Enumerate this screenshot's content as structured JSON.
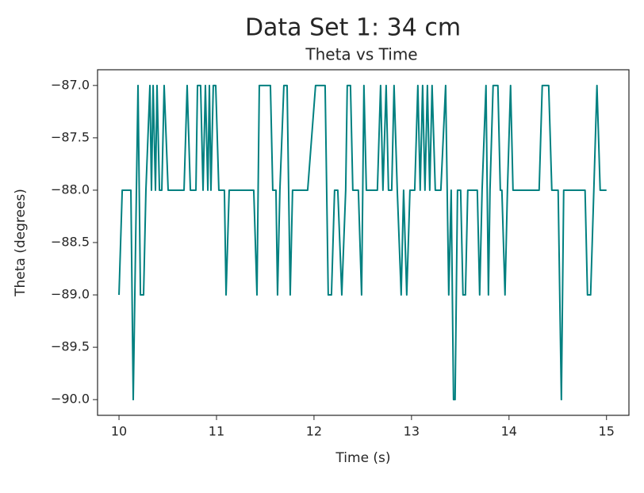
{
  "chart_data": {
    "type": "line",
    "title": "Data Set 1: 34 cm",
    "subtitle": "Theta vs Time",
    "x_label": "Time (s)",
    "y_label": "Theta (degrees)",
    "xlim": [
      9.78,
      15.23
    ],
    "ylim": [
      -90.15,
      -86.85
    ],
    "xticks": [
      10,
      11,
      12,
      13,
      14,
      15
    ],
    "yticks": [
      {
        "value": -87.0,
        "label": "−87.0"
      },
      {
        "value": -87.5,
        "label": "−87.5"
      },
      {
        "value": -88.0,
        "label": "−88.0"
      },
      {
        "value": -88.5,
        "label": "−88.5"
      },
      {
        "value": -89.0,
        "label": "−89.0"
      },
      {
        "value": -89.5,
        "label": "−89.5"
      },
      {
        "value": -90.0,
        "label": "−90.0"
      }
    ],
    "grid": false,
    "series": [
      {
        "color": "#008080",
        "x": [
          10.0,
          10.033,
          10.122,
          10.146,
          10.195,
          10.22,
          10.252,
          10.276,
          10.317,
          10.333,
          10.35,
          10.374,
          10.39,
          10.415,
          10.439,
          10.463,
          10.504,
          10.667,
          10.699,
          10.732,
          10.789,
          10.805,
          10.837,
          10.862,
          10.886,
          10.911,
          10.927,
          10.943,
          10.967,
          10.992,
          11.024,
          11.081,
          11.098,
          11.13,
          11.382,
          11.415,
          11.439,
          11.553,
          11.577,
          11.61,
          11.626,
          11.65,
          11.691,
          11.724,
          11.756,
          11.78,
          11.935,
          12.016,
          12.114,
          12.146,
          12.179,
          12.211,
          12.244,
          12.285,
          12.325,
          12.341,
          12.374,
          12.398,
          12.455,
          12.488,
          12.512,
          12.537,
          12.65,
          12.683,
          12.707,
          12.74,
          12.764,
          12.797,
          12.821,
          12.854,
          12.894,
          12.919,
          12.951,
          12.984,
          13.033,
          13.065,
          13.089,
          13.114,
          13.138,
          13.163,
          13.187,
          13.211,
          13.244,
          13.301,
          13.35,
          13.382,
          13.407,
          13.431,
          13.447,
          13.472,
          13.504,
          13.528,
          13.553,
          13.577,
          13.675,
          13.699,
          13.724,
          13.764,
          13.789,
          13.805,
          13.837,
          13.886,
          13.911,
          13.927,
          13.959,
          13.984,
          14.016,
          14.041,
          14.309,
          14.341,
          14.374,
          14.407,
          14.439,
          14.472,
          14.504,
          14.537,
          14.561,
          14.78,
          14.805,
          14.837,
          14.87,
          14.902,
          14.935,
          14.967,
          15.0
        ],
        "values": [
          -89,
          -88,
          -88,
          -90,
          -87,
          -89,
          -89,
          -88,
          -87,
          -88,
          -87,
          -88,
          -87,
          -88,
          -88,
          -87,
          -88,
          -88,
          -87,
          -88,
          -88,
          -87,
          -87,
          -88,
          -87,
          -88,
          -87,
          -88,
          -87,
          -87,
          -88,
          -88,
          -89,
          -88,
          -88,
          -89,
          -87,
          -87,
          -88,
          -88,
          -89,
          -88,
          -87,
          -87,
          -89,
          -88,
          -88,
          -87,
          -87,
          -89,
          -89,
          -88,
          -88,
          -89,
          -88,
          -87,
          -87,
          -88,
          -88,
          -89,
          -87,
          -88,
          -88,
          -87,
          -88,
          -87,
          -88,
          -88,
          -87,
          -88,
          -89,
          -88,
          -89,
          -88,
          -88,
          -87,
          -88,
          -87,
          -88,
          -87,
          -88,
          -87,
          -88,
          -88,
          -87,
          -89,
          -88,
          -90,
          -90,
          -88,
          -88,
          -89,
          -89,
          -88,
          -88,
          -89,
          -88,
          -87,
          -89,
          -88,
          -87,
          -87,
          -88,
          -88,
          -89,
          -88,
          -87,
          -88,
          -88,
          -87,
          -87,
          -87,
          -88,
          -88,
          -88,
          -90,
          -88,
          -88,
          -89,
          -89,
          -88,
          -87,
          -88,
          -88,
          -88
        ]
      }
    ]
  }
}
